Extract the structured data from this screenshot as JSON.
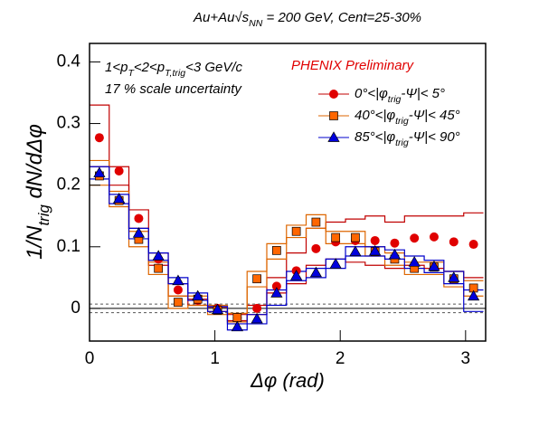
{
  "chart_data": {
    "type": "step_scatter",
    "title": [
      {
        "text": "Au+Au"
      },
      {
        "text": "√"
      },
      {
        "text": "s"
      },
      {
        "text": "NN",
        "sub": true
      },
      {
        "text": " = 200 GeV, Cent=25-30%"
      }
    ],
    "ylabel": [
      {
        "text": "1/N"
      },
      {
        "text": "trig",
        "sub": true
      },
      {
        "text": " dN/dΔφ"
      }
    ],
    "xlabel": [
      {
        "text": "Δφ (rad)"
      }
    ],
    "annotations": [
      [
        {
          "text": "1<p"
        },
        {
          "text": "T",
          "sub": true
        },
        {
          "text": "<2<p"
        },
        {
          "text": "T,trig",
          "sub": true
        },
        {
          "text": "<3 GeV/c"
        }
      ],
      [
        {
          "text": "17 % scale uncertainty"
        }
      ]
    ],
    "label": {
      "text": "PHENIX Preliminary",
      "color": "#e00000"
    },
    "bins": [
      0,
      0.157,
      0.314,
      0.471,
      0.628,
      0.785,
      0.942,
      1.1,
      1.257,
      1.414,
      1.571,
      1.728,
      1.885,
      2.042,
      2.199,
      2.356,
      2.513,
      2.67,
      2.827,
      2.985,
      3.142
    ],
    "xlim": [
      0,
      3.16
    ],
    "ylim": [
      -0.053,
      0.43
    ],
    "xticks": [
      0,
      1,
      2,
      3
    ],
    "yticks": [
      0,
      0.1,
      0.2,
      0.3,
      0.4
    ],
    "zero_band": [
      -0.007,
      0.007
    ],
    "series": [
      {
        "name": [
          {
            "text": "0°<|φ"
          },
          {
            "text": "trig",
            "sub": true
          },
          {
            "text": "-Ψ|< 5°"
          }
        ],
        "marker": "circle",
        "color": "#e00000",
        "band_color": "#c00000",
        "values": [
          0.277,
          0.223,
          0.146,
          0.08,
          0.03,
          0.013,
          0.0,
          -0.015,
          0.0,
          0.036,
          0.061,
          0.097,
          0.108,
          0.11,
          0.11,
          0.106,
          0.114,
          0.116,
          0.108,
          0.104
        ],
        "band_upper": [
          0.33,
          0.23,
          0.16,
          0.09,
          0.04,
          0.015,
          0.002,
          -0.01,
          0.005,
          0.05,
          0.09,
          0.13,
          0.14,
          0.145,
          0.15,
          0.14,
          0.15,
          0.15,
          0.15,
          0.155
        ],
        "band_lower": [
          0.23,
          0.2,
          0.13,
          0.07,
          0.02,
          0.005,
          -0.005,
          -0.02,
          -0.01,
          0.025,
          0.04,
          0.07,
          0.08,
          0.075,
          0.07,
          0.065,
          0.07,
          0.065,
          0.06,
          0.05
        ]
      },
      {
        "name": [
          {
            "text": "40°<|φ"
          },
          {
            "text": "trig",
            "sub": true
          },
          {
            "text": "-Ψ|< 45°"
          }
        ],
        "marker": "square",
        "color": "#ff6600",
        "band_color": "#dd6600",
        "values": [
          0.215,
          0.175,
          0.112,
          0.065,
          0.01,
          0.015,
          -0.003,
          -0.015,
          0.048,
          0.094,
          0.125,
          0.14,
          0.115,
          0.115,
          0.092,
          0.08,
          0.065,
          0.067,
          0.048,
          0.033
        ],
        "band_upper": [
          0.24,
          0.19,
          0.125,
          0.075,
          0.02,
          0.02,
          0.005,
          -0.008,
          0.06,
          0.105,
          0.135,
          0.152,
          0.125,
          0.125,
          0.1,
          0.09,
          0.075,
          0.075,
          0.06,
          0.045
        ],
        "band_lower": [
          0.2,
          0.165,
          0.1,
          0.055,
          0.0,
          0.005,
          -0.01,
          -0.022,
          0.035,
          0.08,
          0.115,
          0.13,
          0.105,
          0.105,
          0.085,
          0.07,
          0.055,
          0.055,
          0.035,
          0.02
        ]
      },
      {
        "name": [
          {
            "text": "85°<|φ"
          },
          {
            "text": "trig",
            "sub": true
          },
          {
            "text": "-Ψ|< 90°"
          }
        ],
        "marker": "triangle",
        "color": "#0000dd",
        "band_color": "#0000cc",
        "values": [
          0.22,
          0.178,
          0.122,
          0.085,
          0.045,
          0.02,
          -0.002,
          -0.03,
          -0.017,
          0.025,
          0.053,
          0.058,
          0.072,
          0.092,
          0.093,
          0.087,
          0.075,
          0.068,
          0.05,
          0.02
        ],
        "band_upper": [
          0.23,
          0.185,
          0.13,
          0.09,
          0.05,
          0.025,
          0.003,
          -0.025,
          -0.01,
          0.03,
          0.06,
          0.065,
          0.08,
          0.1,
          0.1,
          0.095,
          0.085,
          0.078,
          0.06,
          0.03
        ],
        "band_lower": [
          0.21,
          0.17,
          0.113,
          0.078,
          0.04,
          0.013,
          -0.005,
          -0.035,
          -0.025,
          0.005,
          0.045,
          0.05,
          0.065,
          0.085,
          0.085,
          0.08,
          0.065,
          0.058,
          0.04,
          -0.005
        ]
      }
    ]
  }
}
